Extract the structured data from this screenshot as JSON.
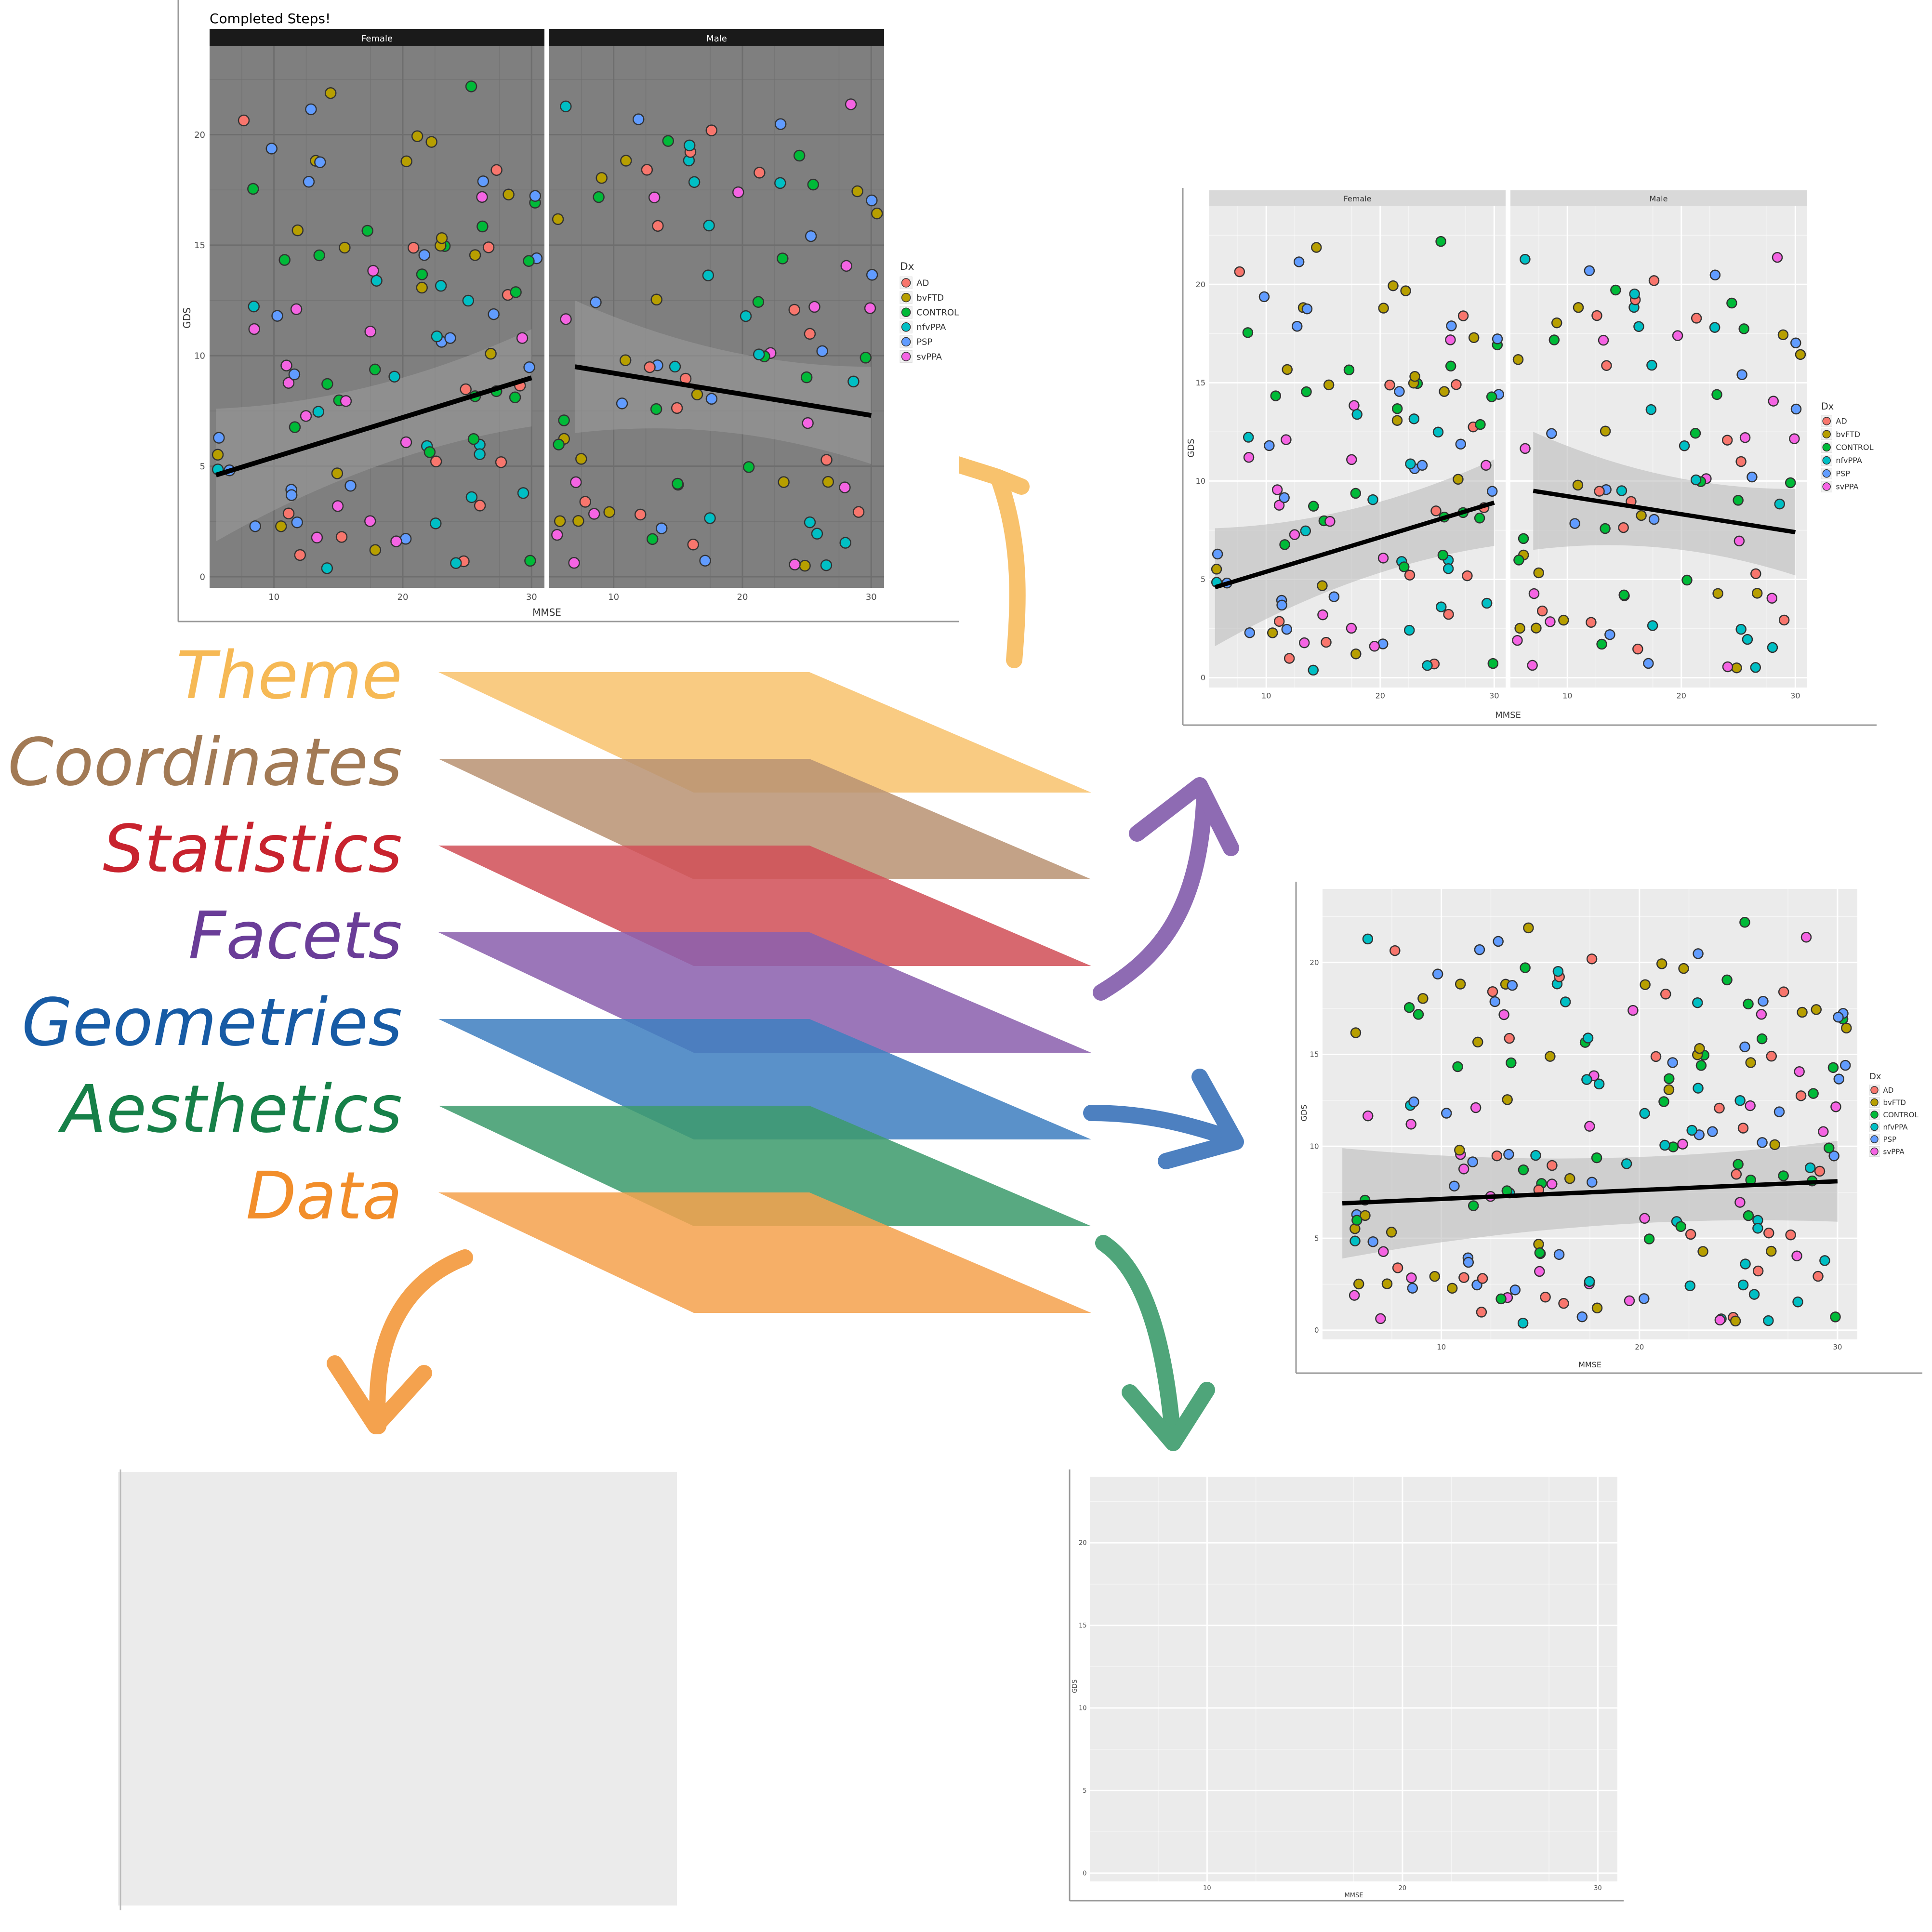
{
  "layers": [
    {
      "label": "Theme",
      "color": "#f6b955"
    },
    {
      "label": "Coordinates",
      "color": "#a27a55"
    },
    {
      "label": "Statistics",
      "color": "#c8232e"
    },
    {
      "label": "Facets",
      "color": "#6a3d98"
    },
    {
      "label": "Geometries",
      "color": "#175ba5"
    },
    {
      "label": "Aesthetics",
      "color": "#168048"
    },
    {
      "label": "Data",
      "color": "#f28e2b"
    }
  ],
  "layer_fills": [
    "#f8c26d",
    "#b99373",
    "#d14f57",
    "#8a60ad",
    "#3f7fc0",
    "#3c9b6c",
    "#f4a24e"
  ],
  "arrow_colors": {
    "data": "#f4a24e",
    "aesthetics": "#4fa57a",
    "geometries": "#4d80c0",
    "facets": "#8e6bb3",
    "theme": "#f8c26d"
  },
  "plots": {
    "theme": {
      "title": "Completed Steps!",
      "xlabel": "MMSE",
      "ylabel": "GDS",
      "panel_labels": [
        "Female",
        "Male"
      ],
      "legend_title": "Dx"
    },
    "facets": {
      "xlabel": "MMSE",
      "ylabel": "GDS",
      "panel_labels": [
        "Female",
        "Male"
      ],
      "legend_title": "Dx"
    },
    "geoms": {
      "xlabel": "MMSE",
      "ylabel": "GDS",
      "legend_title": "Dx"
    },
    "aes": {
      "xlabel": "MMSE",
      "ylabel": "GDS"
    }
  },
  "legend": {
    "entries": [
      "AD",
      "bvFTD",
      "CONTROL",
      "nfvPPA",
      "PSP",
      "svPPA"
    ],
    "colors": [
      "#f8766d",
      "#b79f00",
      "#00ba38",
      "#00bfc4",
      "#619cff",
      "#f564e3"
    ]
  },
  "axes": {
    "x_ticks": [
      "10",
      "20",
      "30"
    ],
    "y_ticks": [
      "0",
      "5",
      "10",
      "15",
      "20"
    ]
  },
  "chart_data": [
    {
      "type": "scatter",
      "facets": [
        "Female",
        "Male"
      ],
      "xlabel": "MMSE",
      "ylabel": "GDS",
      "title": "Completed Steps!",
      "xlim": [
        5,
        31
      ],
      "ylim": [
        -0.5,
        24
      ],
      "trend": {
        "Female": [
          [
            5.5,
            4.6
          ],
          [
            30,
            9.0
          ]
        ],
        "Male": [
          [
            7,
            9.5
          ],
          [
            30,
            7.3
          ]
        ]
      }
    },
    {
      "type": "scatter",
      "facets": [
        "Female",
        "Male"
      ],
      "xlabel": "MMSE",
      "ylabel": "GDS",
      "xlim": [
        5,
        31
      ],
      "ylim": [
        -0.5,
        24
      ],
      "trend": {
        "Female": [
          [
            5.5,
            4.6
          ],
          [
            30,
            8.9
          ]
        ],
        "Male": [
          [
            7,
            9.5
          ],
          [
            30,
            7.4
          ]
        ]
      }
    },
    {
      "type": "scatter",
      "xlabel": "MMSE",
      "ylabel": "GDS",
      "xlim": [
        4,
        31
      ],
      "ylim": [
        -0.5,
        24
      ],
      "trend": [
        [
          5,
          6.9
        ],
        [
          30,
          8.1
        ]
      ]
    },
    {
      "type": "scatter",
      "xlabel": "MMSE",
      "ylabel": "GDS",
      "xlim": [
        4,
        31
      ],
      "ylim": [
        -0.5,
        24
      ],
      "points": []
    }
  ]
}
